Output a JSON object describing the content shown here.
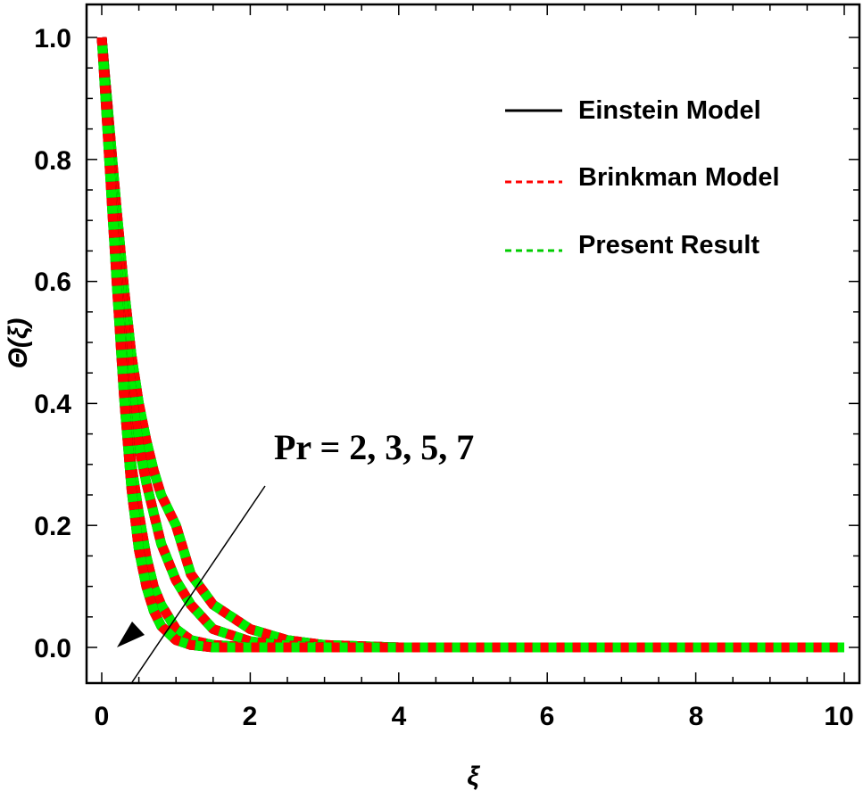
{
  "chart_data": {
    "type": "line",
    "title": "",
    "xlabel": "ξ",
    "ylabel": "Θ(ξ)",
    "xlim": [
      0,
      10
    ],
    "ylim": [
      0,
      1.0
    ],
    "x_ticks": [
      "0",
      "2",
      "4",
      "6",
      "8",
      "10"
    ],
    "y_ticks": [
      "0.0",
      "0.2",
      "0.4",
      "0.6",
      "0.8",
      "1.0"
    ],
    "grid": false,
    "legend": {
      "position": "upper right",
      "entries": [
        {
          "label": "Einstein Model",
          "color": "#000000",
          "style": "solid"
        },
        {
          "label": "Brinkman Model",
          "color": "#ff0000",
          "style": "dashed"
        },
        {
          "label": "Present Result",
          "color": "#00ee00",
          "style": "dashed"
        }
      ]
    },
    "annotation": {
      "text": "Pr =  2, 3, 5, 7",
      "arrow": "points toward lower-left (direction of increasing Pr)"
    },
    "x": [
      0,
      0.1,
      0.2,
      0.3,
      0.4,
      0.5,
      0.6,
      0.7,
      0.8,
      1.0,
      1.2,
      1.5,
      2.0,
      2.5,
      3.0,
      4.0,
      6.0,
      8.0,
      10.0
    ],
    "series": [
      {
        "name": "Pr = 2",
        "values": [
          1.0,
          0.86,
          0.72,
          0.59,
          0.48,
          0.4,
          0.34,
          0.29,
          0.25,
          0.2,
          0.12,
          0.07,
          0.03,
          0.012,
          0.004,
          0.0,
          0.0,
          0.0,
          0.0
        ]
      },
      {
        "name": "Pr = 3",
        "values": [
          1.0,
          0.84,
          0.68,
          0.54,
          0.42,
          0.33,
          0.27,
          0.22,
          0.17,
          0.11,
          0.07,
          0.03,
          0.01,
          0.003,
          0.0,
          0.0,
          0.0,
          0.0,
          0.0
        ]
      },
      {
        "name": "Pr = 5",
        "values": [
          1.0,
          0.82,
          0.64,
          0.44,
          0.3,
          0.22,
          0.15,
          0.1,
          0.07,
          0.03,
          0.012,
          0.004,
          0.0,
          0.0,
          0.0,
          0.0,
          0.0,
          0.0,
          0.0
        ]
      },
      {
        "name": "Pr = 7",
        "values": [
          1.0,
          0.8,
          0.6,
          0.41,
          0.26,
          0.16,
          0.1,
          0.06,
          0.035,
          0.012,
          0.004,
          0.0,
          0.0,
          0.0,
          0.0,
          0.0,
          0.0,
          0.0,
          0.0
        ]
      }
    ],
    "note": "Each Pr curve is drawn three times (Einstein solid black, Brinkman red dashed, Present green dashed) and they overlap."
  },
  "labels": {
    "xlabel": "ξ",
    "ylabel": "Θ(ξ)",
    "annotation": "Pr =  2, 3, 5, 7",
    "legend": [
      "Einstein Model",
      "Brinkman Model",
      "Present Result"
    ],
    "x_ticks": [
      "0",
      "2",
      "4",
      "6",
      "8",
      "10"
    ],
    "y_ticks": [
      "0.0",
      "0.2",
      "0.4",
      "0.6",
      "0.8",
      "1.0"
    ]
  }
}
